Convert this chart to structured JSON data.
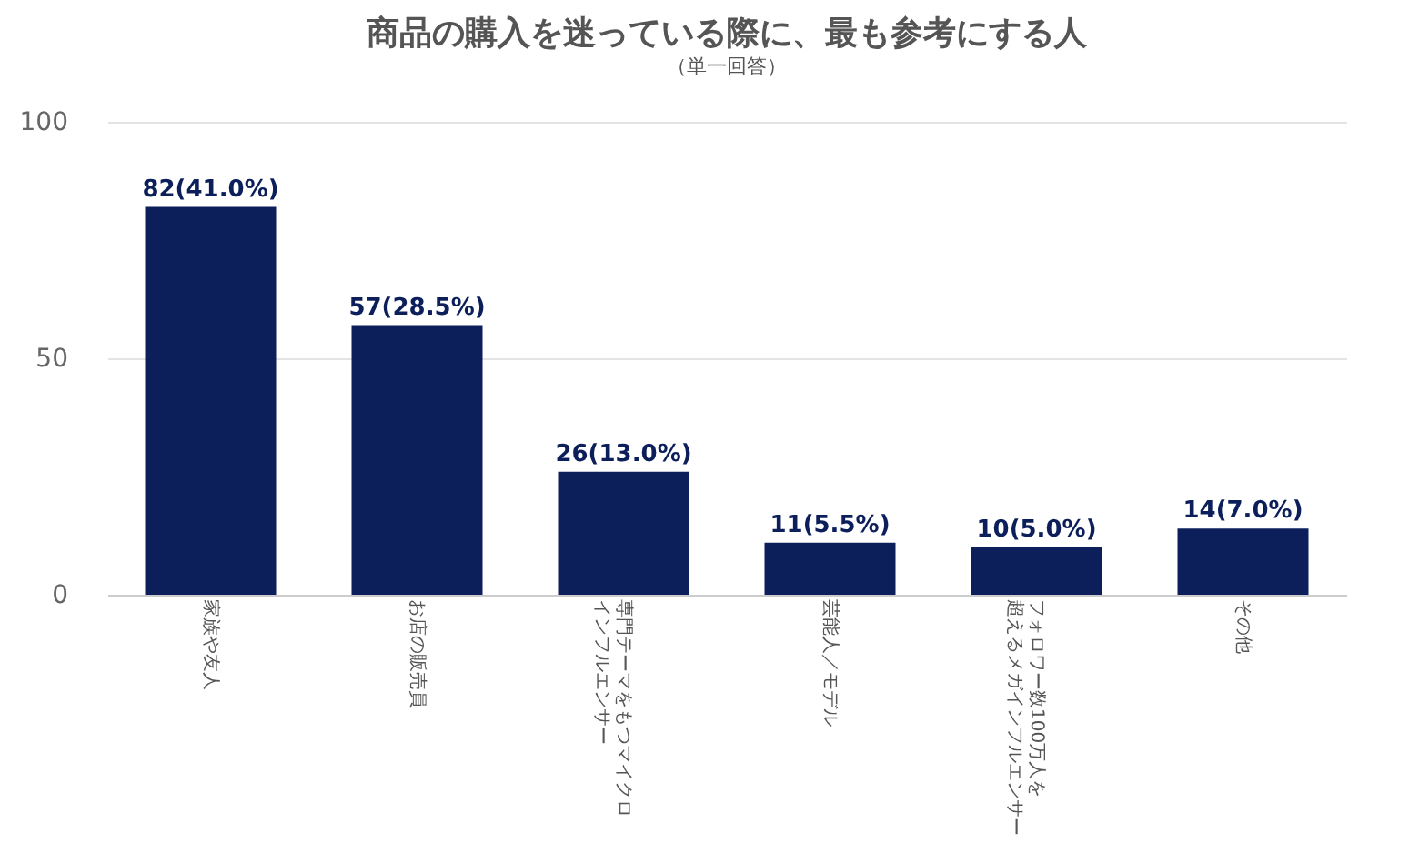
{
  "chart_data": {
    "type": "bar",
    "title": "商品の購入を迷っている際に、最も参考にする人",
    "subtitle": "（単一回答）",
    "categories": [
      "家族や友人",
      "お店の販売員",
      "専門テーマをもつマイクロインフルエンサー",
      "芸能人／モデル",
      "フォロワー数100万人を超えるメガインフルエンサー",
      "その他"
    ],
    "values": [
      82,
      57,
      26,
      11,
      10,
      14
    ],
    "value_labels": [
      "82(41.0%)",
      "57(28.5%)",
      "26(13.0%)",
      "11(5.5%)",
      "10(5.0%)",
      "14(7.0%)"
    ],
    "color": "#0c1f5b",
    "ylim": [
      0,
      100
    ],
    "yticks": [
      0,
      50,
      100
    ],
    "grid": "y"
  }
}
